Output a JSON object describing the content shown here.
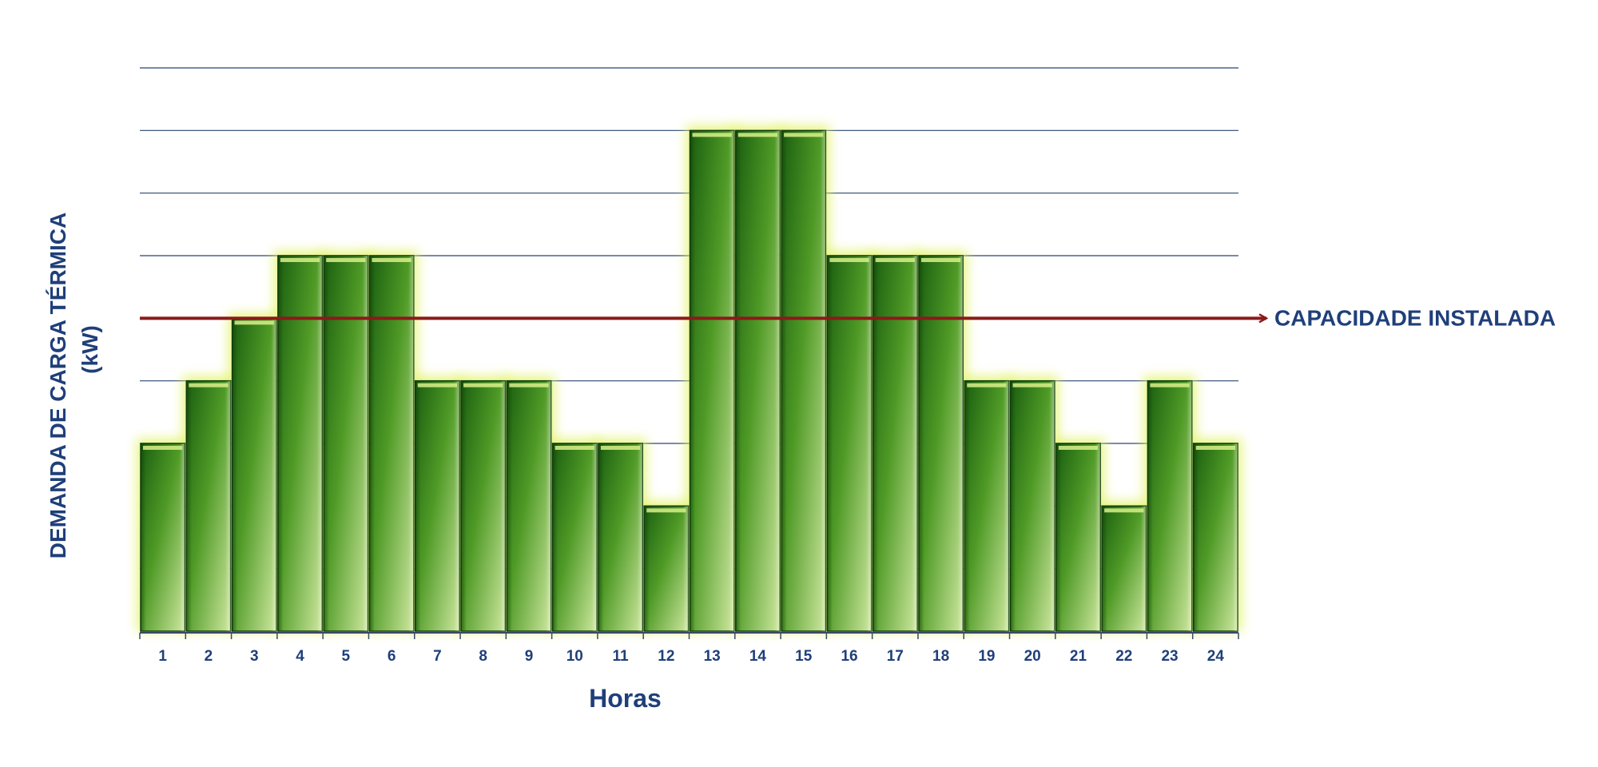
{
  "chart_data": {
    "type": "bar",
    "xlabel": "Horas",
    "ylabel": "DEMANDA DE CARGA TÉRMICA",
    "ylabel_unit": "(kW)",
    "categories": [
      "1",
      "2",
      "3",
      "4",
      "5",
      "6",
      "7",
      "8",
      "9",
      "10",
      "11",
      "12",
      "13",
      "14",
      "15",
      "16",
      "17",
      "18",
      "19",
      "20",
      "21",
      "22",
      "23",
      "24"
    ],
    "values": [
      3,
      4,
      5,
      6,
      6,
      6,
      4,
      4,
      4,
      3,
      3,
      2,
      8,
      8,
      8,
      6,
      6,
      6,
      4,
      4,
      3,
      2,
      4,
      3
    ],
    "ylim": [
      0,
      9
    ],
    "y_ticks_labeled": false,
    "grid": true,
    "reference_line": {
      "label": "CAPACIDADE INSTALADA",
      "value": 5,
      "color": "#8b1a1a"
    },
    "colors": {
      "bar_dark": "#1f6b12",
      "bar_mid": "#5aa12d",
      "bar_light": "#c8e48a",
      "bar_glow": "#dff25a",
      "grid": "#2a4470",
      "text": "#1f3f7a"
    }
  }
}
